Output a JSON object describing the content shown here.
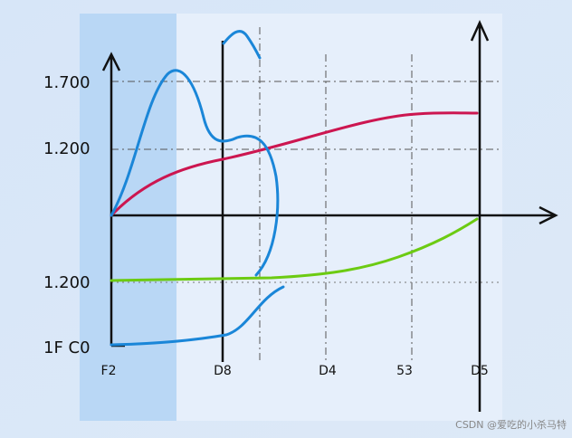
{
  "y_labels": [
    "1.700",
    "1.200",
    "1.200",
    "1F C0"
  ],
  "x_labels": [
    "F2",
    "D8",
    "D4",
    "53",
    "D5"
  ],
  "watermark": "CSDN @爱吃的小杀马特"
}
